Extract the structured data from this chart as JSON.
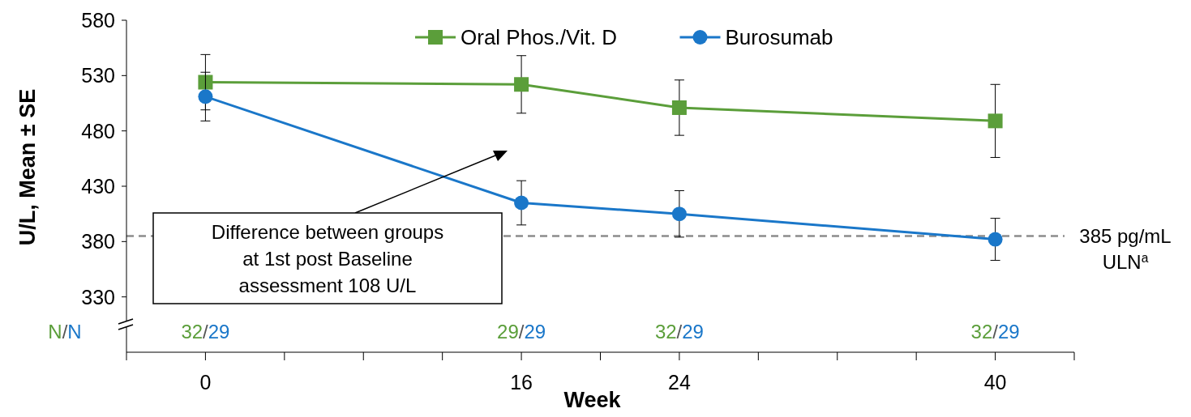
{
  "chart_data": {
    "type": "line",
    "xlabel": "Week",
    "ylabel": "U/L, Mean ± SE",
    "xlim": [
      -4,
      44
    ],
    "xticks": [
      {
        "value": -4,
        "label": null
      },
      {
        "value": 0,
        "label": "0"
      },
      {
        "value": 4,
        "label": null
      },
      {
        "value": 8,
        "label": null
      },
      {
        "value": 12,
        "label": null
      },
      {
        "value": 16,
        "label": "16"
      },
      {
        "value": 20,
        "label": null
      },
      {
        "value": 24,
        "label": "24"
      },
      {
        "value": 28,
        "label": null
      },
      {
        "value": 32,
        "label": null
      },
      {
        "value": 36,
        "label": null
      },
      {
        "value": 40,
        "label": "40"
      },
      {
        "value": 44,
        "label": null
      }
    ],
    "ylim": [
      280,
      580
    ],
    "yticks": [
      330,
      380,
      430,
      480,
      530,
      580
    ],
    "x": [
      0,
      16,
      24,
      40
    ],
    "series": [
      {
        "name": "Oral Phos./Vit. D",
        "color": "#5b9e3a",
        "marker": "square",
        "values": [
          524,
          522,
          501,
          489
        ],
        "errors": [
          25,
          26,
          25,
          33
        ]
      },
      {
        "name": "Burosumab",
        "color": "#1a77c9",
        "marker": "circle",
        "values": [
          511,
          415,
          405,
          382
        ],
        "errors": [
          22,
          20,
          21,
          19
        ]
      }
    ],
    "ref_lines": [
      {
        "axis": "y",
        "value": 385,
        "label": "385 pg/mL\nULN$^{a}$",
        "color": "#8c8c8c",
        "line_style": "dashed"
      }
    ],
    "annotations": [
      "Difference between groups\nat 1st post Baseline\nassessment 108 U/L",
      "N/N",
      "32/29",
      "29/29",
      "32/29",
      "32/29"
    ],
    "legend": "top",
    "line_style": "solid",
    "grid": false
  }
}
